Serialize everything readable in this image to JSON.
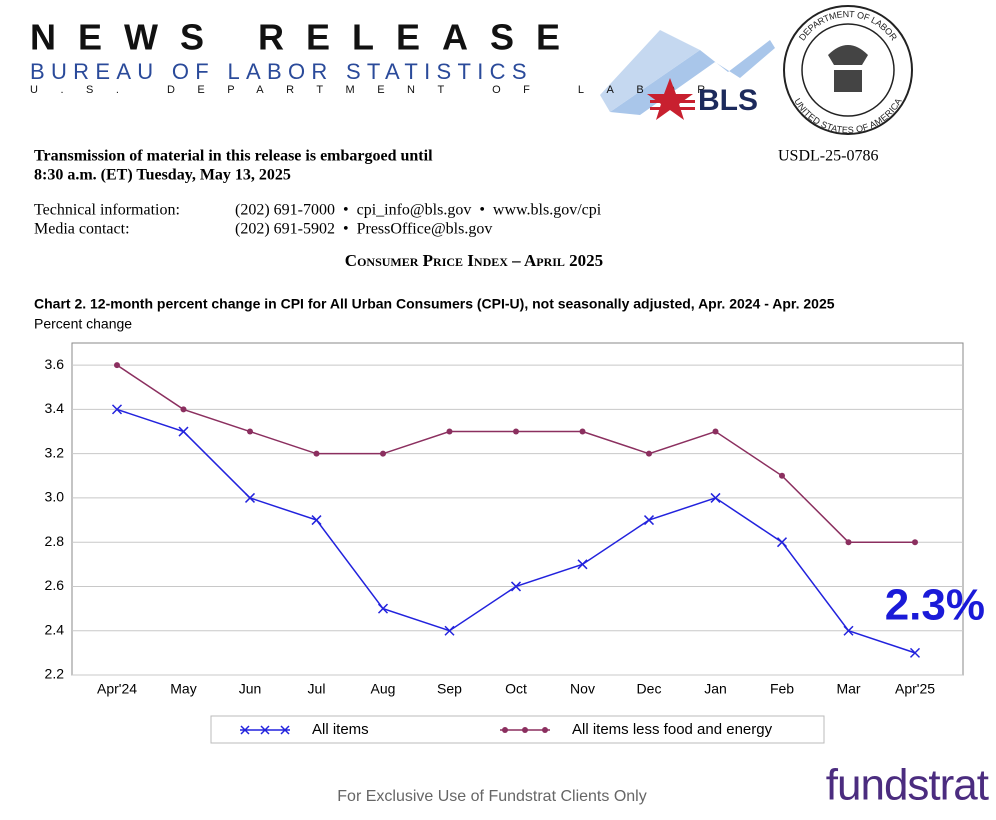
{
  "header": {
    "title": "NEWS RELEASE",
    "agency": "BUREAU OF LABOR STATISTICS",
    "department": "U.S. DEPARTMENT OF LABOR",
    "logo": "BLS",
    "seal": [
      "DEPARTMENT OF LABOR",
      "UNITED STATES OF AMERICA"
    ]
  },
  "release": {
    "embargo": [
      "Transmission of material in this release is embargoed until",
      "8:30 a.m. (ET) Tuesday, May 13, 2025"
    ],
    "id": "USDL-25-0786",
    "contacts": [
      [
        "Technical information:",
        "(202) 691-7000  •  cpi_info@bls.gov  •  www.bls.gov/cpi"
      ],
      [
        "Media contact:",
        "(202) 691-5902  •  PressOffice@bls.gov"
      ]
    ],
    "subject": "Consumer Price Index – April 2025"
  },
  "chart_data": {
    "type": "line",
    "title": "Chart 2. 12-month percent change in CPI for All Urban Consumers (CPI-U), not seasonally adjusted, Apr. 2024 - Apr. 2025",
    "y_label": "Percent change",
    "categories": [
      "Apr'24",
      "May",
      "Jun",
      "Jul",
      "Aug",
      "Sep",
      "Oct",
      "Nov",
      "Dec",
      "Jan",
      "Feb",
      "Mar",
      "Apr'25"
    ],
    "series": [
      {
        "name": "All items",
        "color": "#2222dd",
        "marker": "x",
        "values": [
          3.4,
          3.3,
          3.0,
          2.9,
          2.5,
          2.4,
          2.6,
          2.7,
          2.9,
          3.0,
          2.8,
          2.4,
          2.3
        ]
      },
      {
        "name": "All items less food and energy",
        "color": "#8b2f5f",
        "marker": "circle",
        "values": [
          3.6,
          3.4,
          3.3,
          3.2,
          3.2,
          3.3,
          3.3,
          3.3,
          3.2,
          3.3,
          3.1,
          2.8,
          2.8
        ]
      }
    ],
    "ylim": [
      2.2,
      3.7
    ],
    "yticks": [
      {
        "value": 2.2,
        "label": "2.2"
      },
      {
        "value": 2.4,
        "label": "2.4"
      },
      {
        "value": 2.6,
        "label": "2.6"
      },
      {
        "value": 2.8,
        "label": "2.8"
      },
      {
        "value": 3.0,
        "label": "3.0"
      },
      {
        "value": 3.2,
        "label": "3.2"
      },
      {
        "value": 3.4,
        "label": "3.4"
      },
      {
        "value": 3.6,
        "label": "3.6"
      }
    ],
    "grid": true,
    "annotation": "2.3%"
  },
  "footer": {
    "notice": "For Exclusive Use of Fundstrat Clients Only",
    "brand": "fundstrat"
  }
}
